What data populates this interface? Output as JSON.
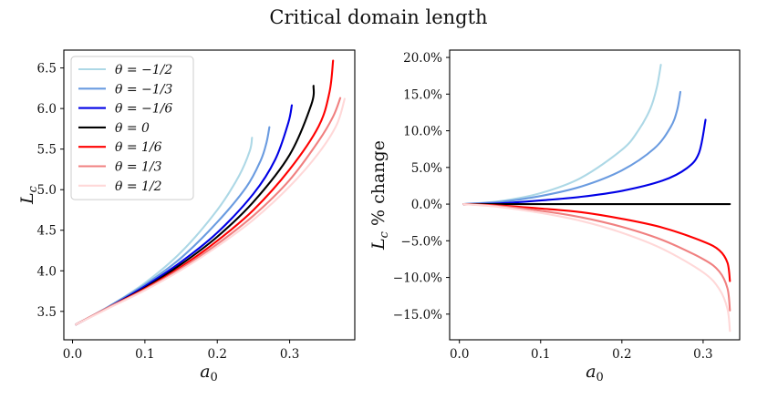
{
  "figure_title": "Critical domain length",
  "chart_data": [
    {
      "type": "line",
      "title": "",
      "xlabel": "a0",
      "ylabel": "Lc",
      "xlim": [
        -0.012,
        0.39
      ],
      "ylim": [
        3.15,
        6.72
      ],
      "xticks": [
        0.0,
        0.1,
        0.2,
        0.3
      ],
      "xtick_labels": [
        "0.0",
        "0.1",
        "0.2",
        "0.3"
      ],
      "yticks": [
        3.5,
        4.0,
        4.5,
        5.0,
        5.5,
        6.0,
        6.5
      ],
      "ytick_labels": [
        "3.5",
        "4.0",
        "4.5",
        "5.0",
        "5.5",
        "6.0",
        "6.5"
      ],
      "legend_position": "top-left",
      "series": [
        {
          "name": "θ = −1/2",
          "color": "#add8e6",
          "x": [
            0.005,
            0.05,
            0.1,
            0.15,
            0.2,
            0.23,
            0.245,
            0.248
          ],
          "y": [
            3.34,
            3.56,
            3.85,
            4.23,
            4.75,
            5.17,
            5.48,
            5.64
          ]
        },
        {
          "name": "θ = −1/3",
          "color": "#6a9be0",
          "x": [
            0.005,
            0.05,
            0.1,
            0.15,
            0.2,
            0.24,
            0.26,
            0.268,
            0.272
          ],
          "y": [
            3.34,
            3.56,
            3.83,
            4.16,
            4.6,
            5.03,
            5.36,
            5.58,
            5.77
          ]
        },
        {
          "name": "θ = −1/6",
          "color": "#0000e6",
          "x": [
            0.005,
            0.05,
            0.1,
            0.15,
            0.2,
            0.25,
            0.28,
            0.298,
            0.303
          ],
          "y": [
            3.34,
            3.55,
            3.81,
            4.11,
            4.47,
            4.95,
            5.37,
            5.82,
            6.04
          ]
        },
        {
          "name": "θ = 0",
          "color": "#000000",
          "x": [
            0.005,
            0.05,
            0.1,
            0.15,
            0.2,
            0.25,
            0.3,
            0.33,
            0.333
          ],
          "y": [
            3.34,
            3.55,
            3.79,
            4.08,
            4.42,
            4.85,
            5.43,
            6.05,
            6.28
          ]
        },
        {
          "name": "θ = 1/6",
          "color": "#ff0000",
          "x": [
            0.005,
            0.05,
            0.1,
            0.15,
            0.2,
            0.25,
            0.3,
            0.34,
            0.355,
            0.36
          ],
          "y": [
            3.34,
            3.55,
            3.78,
            4.05,
            4.37,
            4.75,
            5.25,
            5.78,
            6.2,
            6.59
          ]
        },
        {
          "name": "θ = 1/3",
          "color": "#f08080",
          "x": [
            0.005,
            0.05,
            0.1,
            0.15,
            0.2,
            0.25,
            0.3,
            0.34,
            0.36,
            0.37
          ],
          "y": [
            3.34,
            3.55,
            3.77,
            4.03,
            4.33,
            4.68,
            5.12,
            5.6,
            5.9,
            6.13
          ]
        },
        {
          "name": "θ = 1/2",
          "color": "#ffd8d8",
          "x": [
            0.005,
            0.05,
            0.1,
            0.15,
            0.2,
            0.25,
            0.3,
            0.34,
            0.365,
            0.376
          ],
          "y": [
            3.34,
            3.54,
            3.76,
            4.01,
            4.3,
            4.63,
            5.04,
            5.45,
            5.8,
            6.12
          ]
        }
      ]
    },
    {
      "type": "line",
      "title": "",
      "xlabel": "a0",
      "ylabel": "Lc % change",
      "xlim": [
        -0.012,
        0.345
      ],
      "ylim": [
        -18.5,
        21.0
      ],
      "xticks": [
        0.0,
        0.1,
        0.2,
        0.3
      ],
      "xtick_labels": [
        "0.0",
        "0.1",
        "0.2",
        "0.3"
      ],
      "yticks": [
        -15,
        -10,
        -5,
        0,
        5,
        10,
        15,
        20
      ],
      "ytick_labels": [
        "−15.0%",
        "−10.0%",
        "−5.0%",
        "0.0%",
        "5.0%",
        "10.0%",
        "15.0%",
        "20.0%"
      ],
      "series": [
        {
          "name": "θ = −1/2",
          "color": "#add8e6",
          "x": [
            0.005,
            0.05,
            0.1,
            0.15,
            0.2,
            0.22,
            0.235,
            0.243,
            0.248
          ],
          "y": [
            0,
            0.4,
            1.5,
            3.6,
            7.4,
            10.0,
            13.0,
            15.9,
            19.0
          ]
        },
        {
          "name": "θ = −1/3",
          "color": "#6a9be0",
          "x": [
            0.005,
            0.05,
            0.1,
            0.15,
            0.2,
            0.24,
            0.26,
            0.268,
            0.272
          ],
          "y": [
            0,
            0.3,
            1.1,
            2.4,
            4.6,
            7.6,
            10.5,
            12.8,
            15.3
          ]
        },
        {
          "name": "θ = −1/6",
          "color": "#0000e6",
          "x": [
            0.005,
            0.05,
            0.1,
            0.15,
            0.2,
            0.25,
            0.28,
            0.295,
            0.303
          ],
          "y": [
            0,
            0.1,
            0.5,
            1.0,
            1.8,
            3.2,
            4.9,
            7.0,
            11.5
          ]
        },
        {
          "name": "θ = 0",
          "color": "#000000",
          "x": [
            0.005,
            0.333
          ],
          "y": [
            0,
            0
          ]
        },
        {
          "name": "θ = 1/6",
          "color": "#ff0000",
          "x": [
            0.005,
            0.05,
            0.1,
            0.15,
            0.2,
            0.25,
            0.3,
            0.32,
            0.33,
            0.333
          ],
          "y": [
            0,
            -0.2,
            -0.6,
            -1.1,
            -2.0,
            -3.2,
            -5.1,
            -6.3,
            -8.0,
            -10.5
          ]
        },
        {
          "name": "θ = 1/3",
          "color": "#f08080",
          "x": [
            0.005,
            0.05,
            0.1,
            0.15,
            0.2,
            0.25,
            0.3,
            0.32,
            0.33,
            0.333
          ],
          "y": [
            0,
            -0.3,
            -0.9,
            -1.8,
            -3.1,
            -4.9,
            -7.5,
            -9.2,
            -11.5,
            -14.5
          ]
        },
        {
          "name": "θ = 1/2",
          "color": "#ffd8d8",
          "x": [
            0.005,
            0.05,
            0.1,
            0.15,
            0.2,
            0.25,
            0.3,
            0.32,
            0.33,
            0.333
          ],
          "y": [
            0,
            -0.4,
            -1.2,
            -2.3,
            -3.9,
            -6.1,
            -9.3,
            -11.6,
            -14.3,
            -17.3
          ]
        }
      ]
    }
  ]
}
